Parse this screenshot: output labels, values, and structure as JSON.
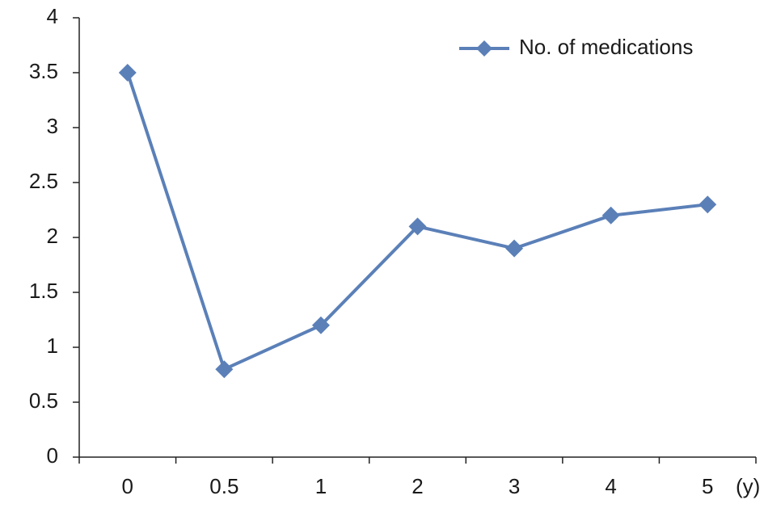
{
  "chart_data": {
    "type": "line",
    "x_label": "(y)",
    "categories": [
      "0",
      "0.5",
      "1",
      "2",
      "3",
      "4",
      "5"
    ],
    "series": [
      {
        "name": "No. of medications",
        "color": "#5b80b8",
        "values": [
          3.5,
          0.8,
          1.2,
          2.1,
          1.9,
          2.2,
          2.3
        ]
      }
    ],
    "ylim": [
      0,
      4
    ],
    "yticks": [
      0,
      0.5,
      1,
      1.5,
      2,
      2.5,
      3,
      3.5,
      4
    ],
    "grid": false,
    "legend": "top-right"
  }
}
